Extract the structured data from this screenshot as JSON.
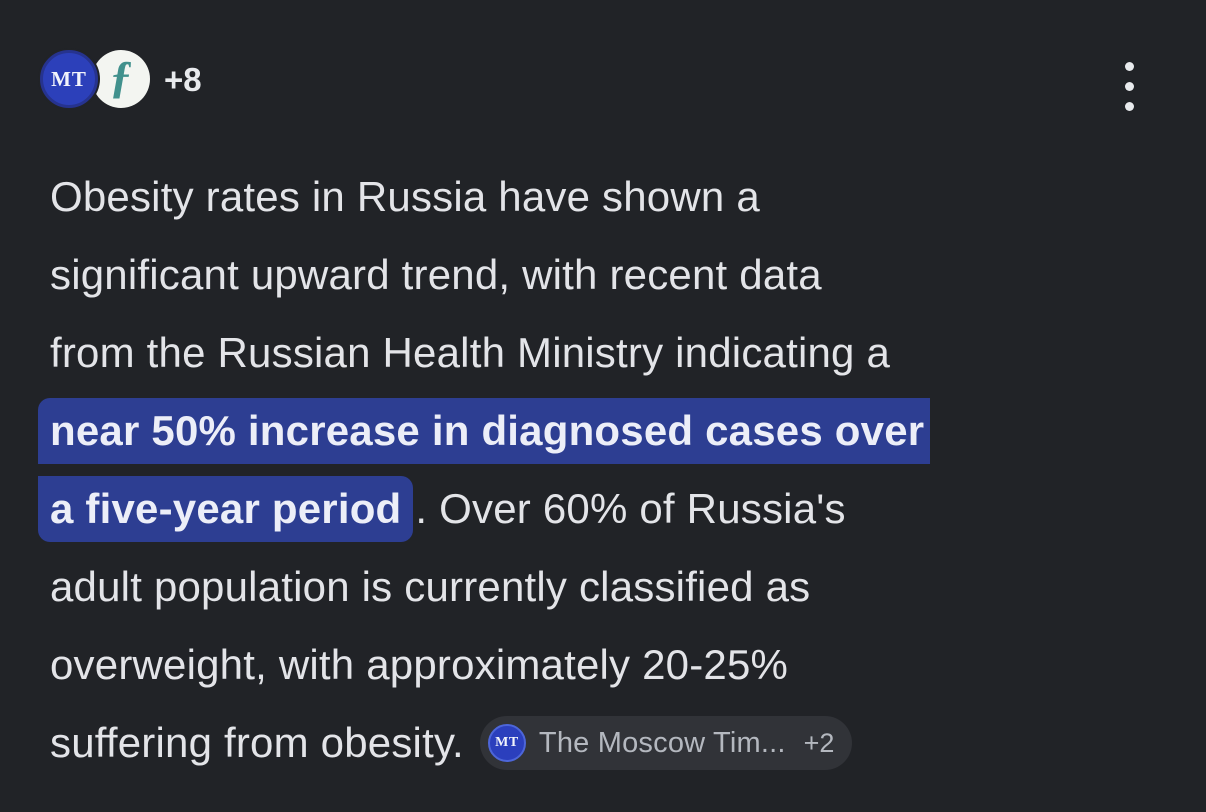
{
  "header": {
    "avatar_mt": {
      "initials": "MT"
    },
    "avatar_f": {
      "glyph": "ƒ"
    },
    "more_count": "+8"
  },
  "answer": {
    "l1": "Obesity rates in Russia have shown a",
    "l2": "significant upward trend, with recent data",
    "l3": "from the Russian Health Ministry indicating a",
    "l4_highlight": "near 50% increase in diagnosed cases over",
    "l5_highlight": "a five-year period",
    "l5_rest": ". Over 60% of Russia's",
    "l6": "adult population is currently classified as",
    "l7": "overweight, with approximately 20-25%",
    "l8": "suffering from obesity."
  },
  "source_chip": {
    "icon_initials": "MT",
    "label": "The Moscow Tim...",
    "more": "+2"
  },
  "colors": {
    "background": "#212327",
    "body_text": "#e3e4e8",
    "highlight_bg": "#2d3e92",
    "highlight_text": "#eceef8",
    "chip_bg": "#313338",
    "chip_text": "#b4b8bf",
    "mt_icon_blue": "#2c40ba",
    "f_icon_teal": "#41918d"
  }
}
